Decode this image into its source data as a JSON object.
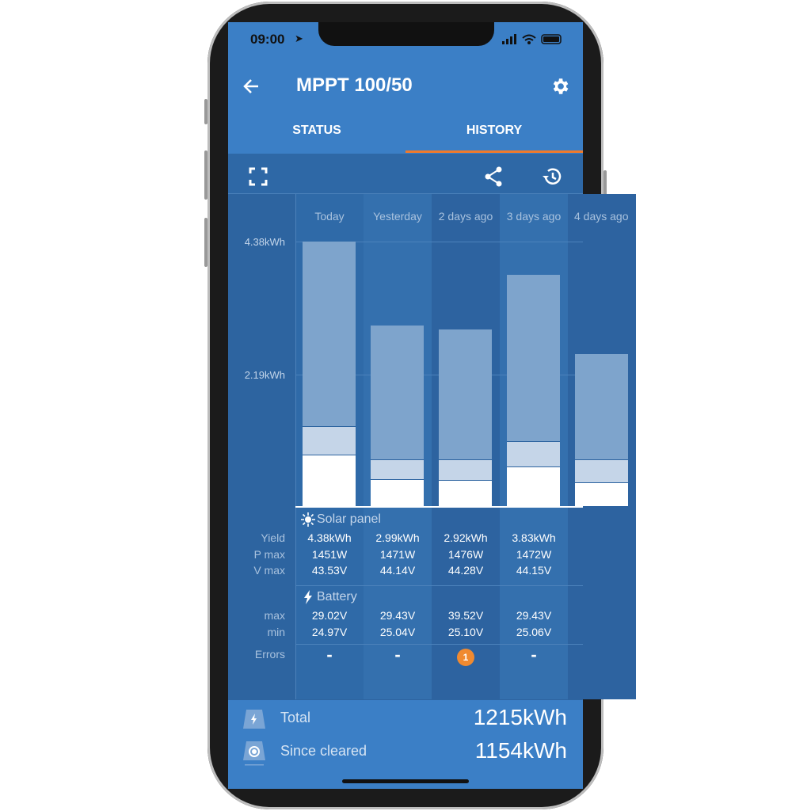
{
  "status_bar": {
    "time": "09:00"
  },
  "header": {
    "title": "MPPT 100/50",
    "back_icon": "arrow-left-icon",
    "settings_icon": "gear-icon"
  },
  "tabs": [
    {
      "label": "STATUS",
      "active": false
    },
    {
      "label": "HISTORY",
      "active": true
    }
  ],
  "colors": {
    "accent": "#f07a2b",
    "header": "#3b7fc6",
    "background": "#2d64a0",
    "error_badge": "#f08a30"
  },
  "toolbar": {
    "icons": [
      "fullscreen-icon",
      "share-icon",
      "history-icon"
    ]
  },
  "chart_data": {
    "type": "bar",
    "stacked": true,
    "categories": [
      "Today",
      "Yesterday",
      "2 days ago",
      "3 days ago",
      "4 days ago"
    ],
    "y_ticks": [
      "4.38kWh",
      "2.19kWh"
    ],
    "ylim": [
      0,
      4.38
    ],
    "series": [
      {
        "values": [
          0.85,
          0.44,
          0.43,
          0.66,
          0.39
        ]
      },
      {
        "values": [
          0.47,
          0.34,
          0.35,
          0.42,
          0.38
        ]
      },
      {
        "values": [
          3.06,
          2.21,
          2.14,
          2.75,
          1.75
        ]
      }
    ],
    "series_colors": [
      "#ffffff",
      "#c5d5e8",
      "#7ea4cc"
    ]
  },
  "solar": {
    "title": "Solar panel",
    "labels": [
      "Yield",
      "P max",
      "V max"
    ],
    "rows": [
      [
        "4.38kWh",
        "2.99kWh",
        "2.92kWh",
        "3.83kWh"
      ],
      [
        "1451W",
        "1471W",
        "1476W",
        "1472W"
      ],
      [
        "43.53V",
        "44.14V",
        "44.28V",
        "44.15V"
      ]
    ]
  },
  "battery": {
    "title": "Battery",
    "labels": [
      "max",
      "min"
    ],
    "rows": [
      [
        "29.02V",
        "29.43V",
        "39.52V",
        "29.43V"
      ],
      [
        "24.97V",
        "25.04V",
        "25.10V",
        "25.06V"
      ]
    ]
  },
  "errors": {
    "label": "Errors",
    "values": [
      "-",
      "-",
      "1",
      "-"
    ]
  },
  "footer": {
    "total_label": "Total",
    "total_value": "1215kWh",
    "cleared_label": "Since cleared",
    "cleared_value": "1154kWh"
  }
}
